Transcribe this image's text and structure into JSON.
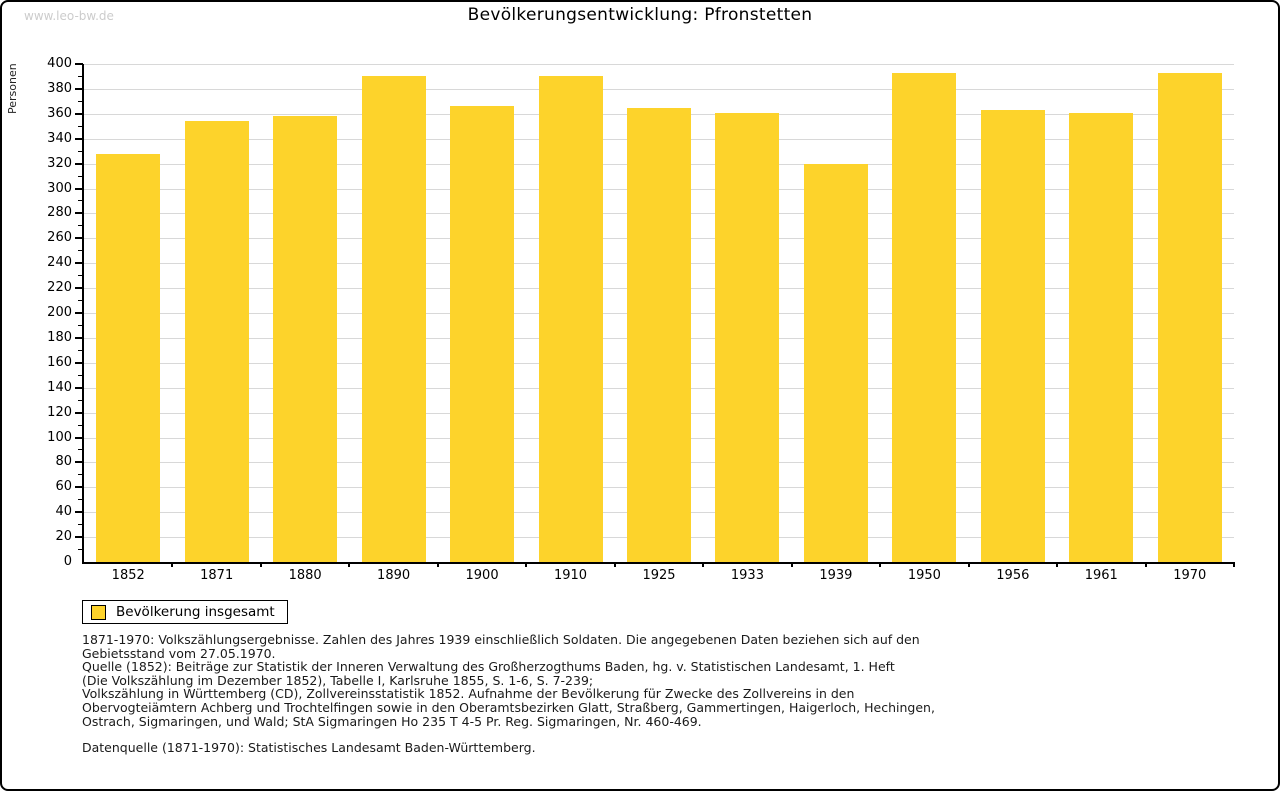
{
  "watermark": "www.leo-bw.de",
  "header": {
    "title": "Bevölkerungsentwicklung: Pfronstetten"
  },
  "chart_data": {
    "type": "bar",
    "title": "Bevölkerungsentwicklung: Pfronstetten",
    "xlabel": "",
    "ylabel": "Personen",
    "ylim": [
      0,
      400
    ],
    "ytick_step": 20,
    "yminor_step": 10,
    "grid": true,
    "bar_color": "#fdd32b",
    "categories": [
      "1852",
      "1871",
      "1880",
      "1890",
      "1900",
      "1910",
      "1925",
      "1933",
      "1939",
      "1950",
      "1956",
      "1961",
      "1970"
    ],
    "series": [
      {
        "name": "Bevölkerung insgesamt",
        "values": [
          328,
          354,
          358,
          390,
          366,
          390,
          365,
          361,
          320,
          393,
          363,
          361,
          393
        ]
      }
    ],
    "legend_position": "bottom-left"
  },
  "legend": {
    "label": "Bevölkerung insgesamt",
    "swatch_color": "#fdd32b"
  },
  "footnotes": {
    "main": "1871-1970: Volkszählungsergebnisse. Zahlen des Jahres 1939 einschließlich Soldaten. Die angegebenen Daten beziehen sich auf den\nGebietsstand vom 27.05.1970.\nQuelle (1852): Beiträge zur Statistik der Inneren Verwaltung des Großherzogthums Baden, hg. v. Statistischen Landesamt, 1. Heft\n(Die Volkszählung im Dezember 1852), Tabelle I, Karlsruhe 1855, S. 1-6, S. 7-239;\nVolkszählung in Württemberg (CD), Zollvereinsstatistik 1852. Aufnahme der Bevölkerung für Zwecke des Zollvereins in den\nObervogteiämtern Achberg und Trochtelfingen sowie in den Oberamtsbezirken Glatt, Straßberg, Gammertingen, Haigerloch, Hechingen,\nOstrach, Sigmaringen, und Wald; StA Sigmaringen Ho 235 T 4-5 Pr. Reg. Sigmaringen, Nr. 460-469.",
    "datasource": "Datenquelle (1871-1970): Statistisches Landesamt Baden-Württemberg."
  },
  "colors": {
    "bar": "#fdd32b",
    "gridline": "#d8d8d8",
    "axis": "#000000",
    "watermark": "#cccccc"
  }
}
